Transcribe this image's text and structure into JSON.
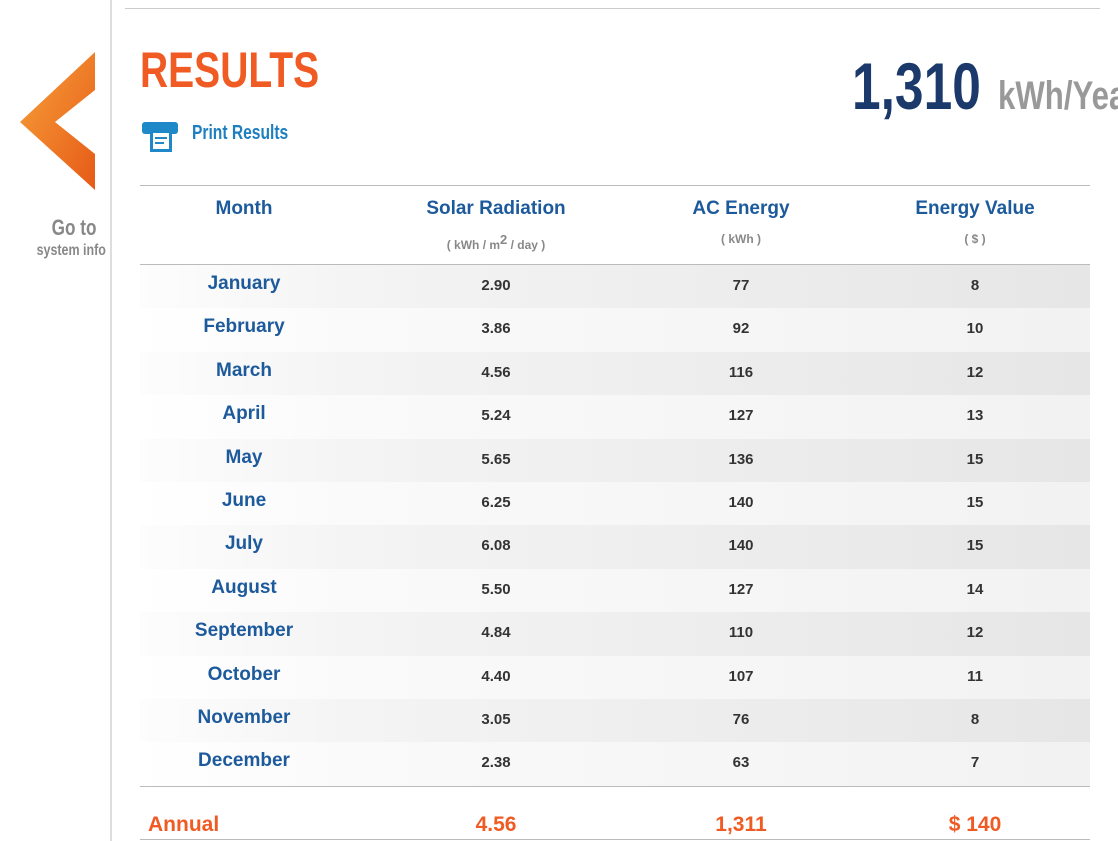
{
  "sidebar": {
    "link_line1": "Go to",
    "link_line2": "system info"
  },
  "header": {
    "title": "RESULTS",
    "print_label": "Print Results",
    "total_value": "1,310",
    "total_unit": "kWh/Year*"
  },
  "table": {
    "columns": [
      {
        "label": "Month"
      },
      {
        "label": "Solar Radiation",
        "unit": {
          "before": "( kWh / m",
          "sup": "2",
          "after": " / day )"
        }
      },
      {
        "label": "AC Energy",
        "unit": {
          "before": "( kWh )"
        }
      },
      {
        "label": "Energy Value",
        "unit": {
          "before": "( $ )"
        }
      }
    ],
    "rows": [
      [
        "January",
        "2.90",
        "77",
        "8"
      ],
      [
        "February",
        "3.86",
        "92",
        "10"
      ],
      [
        "March",
        "4.56",
        "116",
        "12"
      ],
      [
        "April",
        "5.24",
        "127",
        "13"
      ],
      [
        "May",
        "5.65",
        "136",
        "15"
      ],
      [
        "June",
        "6.25",
        "140",
        "15"
      ],
      [
        "July",
        "6.08",
        "140",
        "15"
      ],
      [
        "August",
        "5.50",
        "127",
        "14"
      ],
      [
        "September",
        "4.84",
        "110",
        "12"
      ],
      [
        "October",
        "4.40",
        "107",
        "11"
      ],
      [
        "November",
        "3.05",
        "76",
        "8"
      ],
      [
        "December",
        "2.38",
        "63",
        "7"
      ]
    ],
    "annual": [
      "Annual",
      "4.56",
      "1,311",
      "$ 140"
    ]
  }
}
